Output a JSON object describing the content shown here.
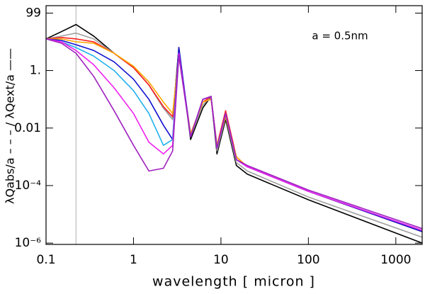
{
  "chart_data": {
    "type": "line",
    "y_label": "λQabs/a – – – / λQext/a ——",
    "x_label": "wavelength [ micron ]",
    "annotation": "a = 0.5nm",
    "log_x": true,
    "log_y": true,
    "xlim": [
      0.1,
      2000
    ],
    "ylim": [
      9e-07,
      180
    ],
    "xticks": [
      0.1,
      1,
      10,
      100,
      1000
    ],
    "yticks": [
      99,
      {
        "value": 1,
        "label": "1."
      },
      0.01,
      {
        "value": 0.0001,
        "label": "10⁻⁴"
      },
      {
        "value": 1e-06,
        "label": "10⁻⁶"
      }
    ],
    "vline_x": 0.22,
    "vline_color": "#b0b0b0",
    "x": [
      0.1,
      0.15,
      0.22,
      0.35,
      0.6,
      1,
      1.5,
      2.2,
      2.8,
      3.3,
      4.5,
      6.2,
      7.7,
      9,
      11.3,
      15,
      20,
      100,
      2000
    ],
    "series": [
      {
        "color": "#000000",
        "values": [
          12.6,
          22.4,
          39.8,
          15.8,
          3.98,
          1.26,
          0.316,
          0.05,
          0.02,
          6.3,
          0.004,
          0.05,
          0.126,
          0.00126,
          0.02,
          0.0005,
          0.00025,
          3.2e-05,
          1e-06
        ]
      },
      {
        "color": "#a0a0a0",
        "values": [
          12.6,
          15.8,
          20,
          12.6,
          3.98,
          1.26,
          0.316,
          0.05,
          0.02,
          5.0,
          0.005,
          0.063,
          0.126,
          0.0016,
          0.025,
          0.00063,
          0.00032,
          4e-05,
          1.6e-06
        ]
      },
      {
        "color": "#ff2020",
        "values": [
          12.6,
          14.1,
          12.6,
          10,
          3.98,
          1.26,
          0.316,
          0.056,
          0.025,
          4.0,
          0.0063,
          0.08,
          0.126,
          0.0025,
          0.04,
          0.001,
          0.00045,
          6.3e-05,
          2.5e-06
        ]
      },
      {
        "color": "#ffa500",
        "values": [
          12.6,
          12.6,
          10,
          8.9,
          3.98,
          1.4,
          0.4,
          0.08,
          0.032,
          3.2,
          0.0063,
          0.08,
          0.1,
          0.0025,
          0.025,
          0.001,
          0.00045,
          6.3e-05,
          2.5e-06
        ]
      },
      {
        "color": "#1010d0",
        "values": [
          12.6,
          11.2,
          7.9,
          5.0,
          2.0,
          0.5,
          0.1,
          0.0126,
          0.004,
          6.3,
          0.005,
          0.1,
          0.126,
          0.002,
          0.032,
          0.0008,
          0.00045,
          6.3e-05,
          2.5e-06
        ]
      },
      {
        "color": "#20b0f0",
        "values": [
          12.6,
          10,
          6.3,
          3.2,
          1,
          0.2,
          0.032,
          0.0025,
          0.004,
          4.0,
          0.005,
          0.1,
          0.126,
          0.002,
          0.032,
          0.0008,
          0.00045,
          6.3e-05,
          2.8e-06
        ]
      },
      {
        "color": "#f020f0",
        "values": [
          12.6,
          10,
          5.0,
          1.6,
          0.25,
          0.032,
          0.0032,
          0.00126,
          0.0025,
          4.0,
          0.005,
          0.1,
          0.126,
          0.002,
          0.032,
          0.0008,
          0.00045,
          6.3e-05,
          2.8e-06
        ]
      },
      {
        "color": "#a020c0",
        "values": [
          12.6,
          8.9,
          4.0,
          0.63,
          0.04,
          0.0025,
          0.00032,
          0.0004,
          0.0016,
          3.2,
          0.005,
          0.1,
          0.126,
          0.002,
          0.032,
          0.0008,
          0.0005,
          7e-05,
          3.2e-06
        ]
      }
    ]
  }
}
